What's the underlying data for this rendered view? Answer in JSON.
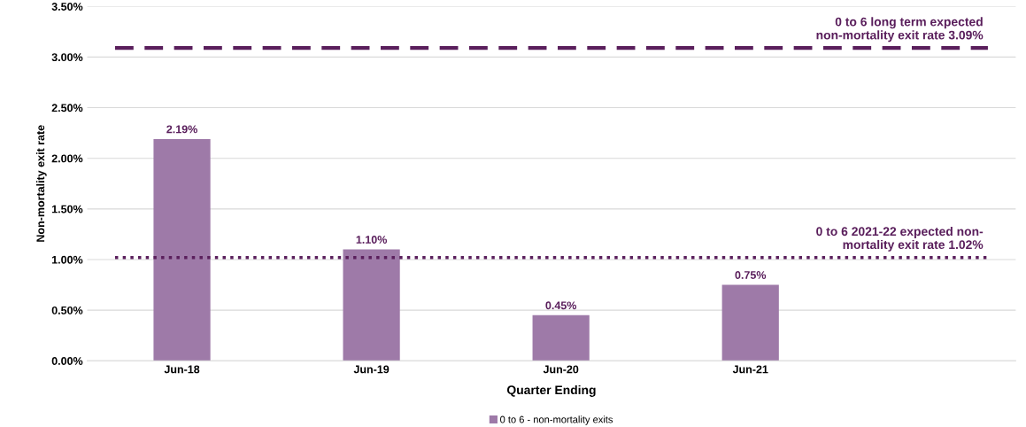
{
  "chart_data": {
    "type": "bar",
    "xlabel": "Quarter Ending",
    "ylabel": "Non-mortality exit rate",
    "categories": [
      "Jun-18",
      "Jun-19",
      "Jun-20",
      "Jun-21"
    ],
    "series": [
      {
        "name": "0 to 6 - non-mortality exits",
        "color": "#9e7aa8",
        "values": [
          2.19,
          1.1,
          0.45,
          0.75
        ],
        "value_labels": [
          "2.19%",
          "1.10%",
          "0.45%",
          "0.75%"
        ]
      }
    ],
    "ylim": [
      0,
      3.5
    ],
    "yticks": [
      {
        "value": 0,
        "label": "0.00%"
      },
      {
        "value": 0.5,
        "label": "0.50%"
      },
      {
        "value": 1,
        "label": "1.00%"
      },
      {
        "value": 1.5,
        "label": "1.50%"
      },
      {
        "value": 2,
        "label": "2.00%"
      },
      {
        "value": 2.5,
        "label": "2.50%"
      },
      {
        "value": 3,
        "label": "3.00%"
      },
      {
        "value": 3.5,
        "label": "3.50%"
      }
    ],
    "ref_lines": [
      {
        "axis": "y",
        "value": 3.09,
        "label": "0 to 6 long term expected\nnon-mortality exit rate 3.09%",
        "color": "#5a1f5c",
        "line_style": "dashed"
      },
      {
        "axis": "y",
        "value": 1.02,
        "label": "0 to 6 2021-22 expected non-\nmortality exit rate 1.02%",
        "color": "#5a1f5c",
        "line_style": "dotted"
      }
    ],
    "grid": "y",
    "legend": "bottom"
  }
}
